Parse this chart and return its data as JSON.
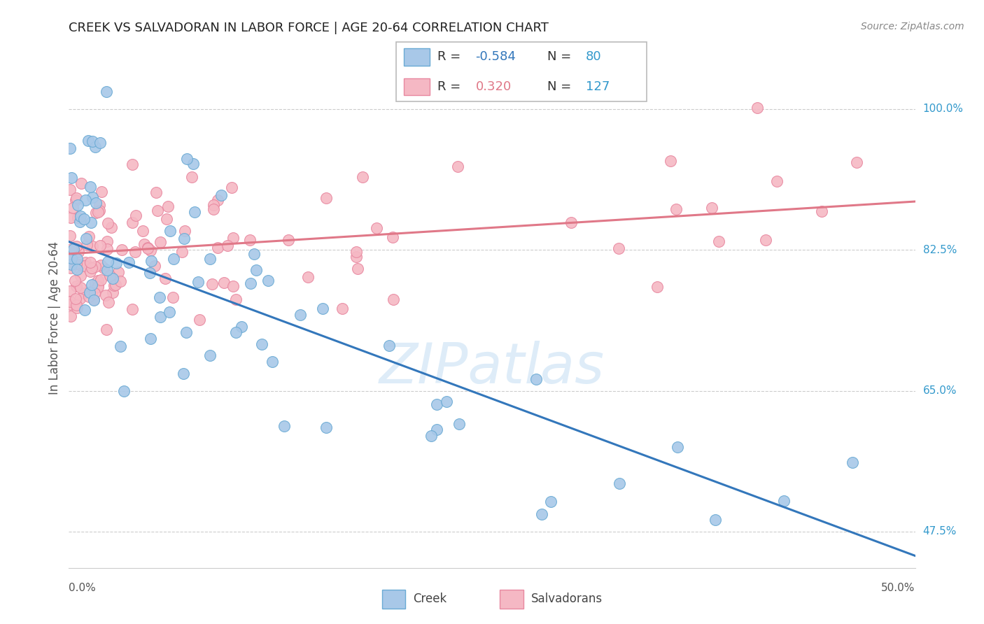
{
  "title": "CREEK VS SALVADORAN IN LABOR FORCE | AGE 20-64 CORRELATION CHART",
  "source": "Source: ZipAtlas.com",
  "ylabel": "In Labor Force | Age 20-64",
  "yticks": [
    47.5,
    65.0,
    82.5,
    100.0
  ],
  "xmin": 0.0,
  "xmax": 50.0,
  "ymin": 43.0,
  "ymax": 105.0,
  "creek_color": "#a8c8e8",
  "creek_edge_color": "#6aaad4",
  "creek_line_color": "#3377bb",
  "salvadoran_color": "#f5b8c4",
  "salvadoran_edge_color": "#e888a0",
  "salvadoran_line_color": "#e07888",
  "creek_R": "-0.584",
  "creek_N": "80",
  "salvadoran_R": "0.320",
  "salvadoran_N": "127",
  "creek_line_x0": 0.0,
  "creek_line_y0": 83.5,
  "creek_line_x1": 50.0,
  "creek_line_y1": 44.5,
  "salv_line_x0": 0.0,
  "salv_line_y0": 82.0,
  "salv_line_x1": 50.0,
  "salv_line_y1": 88.5,
  "watermark": "ZIPatlas",
  "grid_color": "#cccccc",
  "title_color": "#222222",
  "source_color": "#888888",
  "ylabel_color": "#555555",
  "tick_label_color": "#3399cc",
  "xlabel_color": "#555555"
}
